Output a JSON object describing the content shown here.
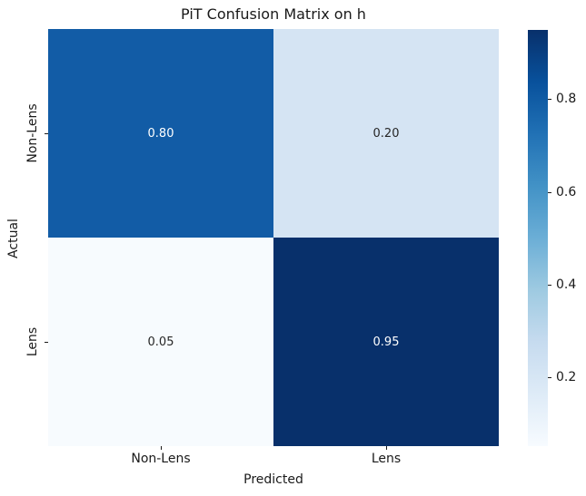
{
  "figure": {
    "title": "PiT Confusion Matrix on h",
    "xlabel": "Predicted",
    "ylabel": "Actual"
  },
  "chart_data": {
    "type": "heatmap",
    "title": "PiT Confusion Matrix on h",
    "xlabel": "Predicted",
    "ylabel": "Actual",
    "x_categories": [
      "Non-Lens",
      "Lens"
    ],
    "y_categories": [
      "Non-Lens",
      "Lens"
    ],
    "values": [
      [
        0.8,
        0.2
      ],
      [
        0.05,
        0.95
      ]
    ],
    "cell_labels": [
      [
        "0.80",
        "0.20"
      ],
      [
        "0.05",
        "0.95"
      ]
    ],
    "colormap": "Blues",
    "vmin": 0.05,
    "vmax": 0.95,
    "grid": false,
    "legend_position": "right-colorbar",
    "colorbar_ticks": [
      0.8,
      0.6,
      0.4,
      0.2
    ],
    "colorbar_tick_labels": [
      "0.8",
      "0.6",
      "0.4",
      "0.2"
    ],
    "cell_colors": [
      [
        "#125ca6",
        "#d5e4f3"
      ],
      [
        "#f7fbfe",
        "#08306b"
      ]
    ],
    "annot_colors": [
      [
        "#ffffff",
        "#262626"
      ],
      [
        "#262626",
        "#ffffff"
      ]
    ],
    "colormap_stops": [
      "#f7fbff",
      "#deebf7",
      "#c6dbef",
      "#9ecae1",
      "#6baed6",
      "#4292c6",
      "#2171b5",
      "#08519c",
      "#08306b"
    ]
  }
}
